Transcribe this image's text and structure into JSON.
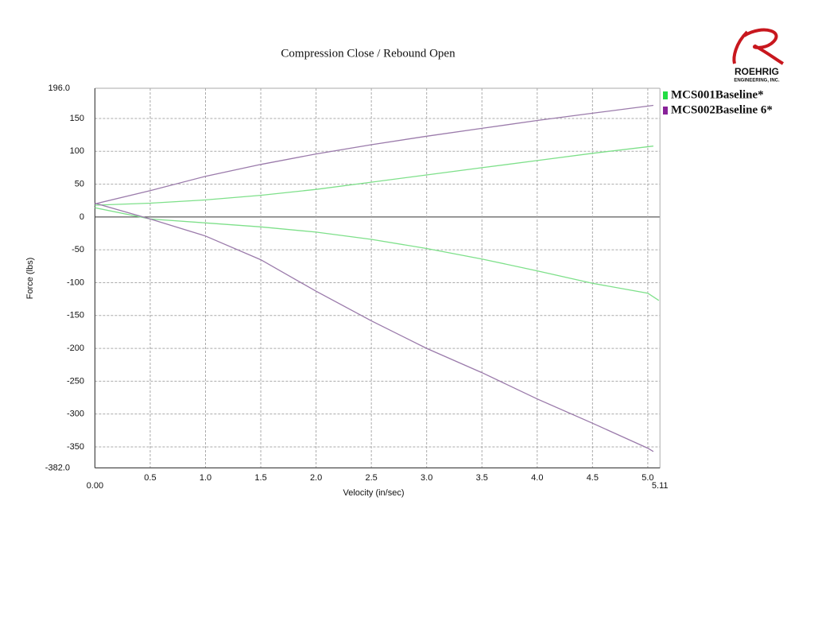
{
  "chart_data": {
    "type": "line",
    "title": "Compression Close / Rebound Open",
    "xlabel": "Velocity (in/sec)",
    "ylabel": "Force (lbs)",
    "xlim": [
      0,
      5.11
    ],
    "ylim": [
      -382,
      196
    ],
    "xticks": [
      {
        "value": 0,
        "label": "0.00"
      },
      0.5,
      {
        "value": 1,
        "label": "1.0"
      },
      1.5,
      {
        "value": 2,
        "label": "2.0"
      },
      2.5,
      {
        "value": 3,
        "label": "3.0"
      },
      3.5,
      {
        "value": 4,
        "label": "4.0"
      },
      4.5,
      {
        "value": 5,
        "label": "5.0"
      },
      5.11
    ],
    "yticks": [
      {
        "value": 196,
        "label": "196.0"
      },
      150,
      100,
      50,
      0,
      -50,
      -100,
      -150,
      -200,
      -250,
      -300,
      -350,
      {
        "value": -382,
        "label": "-382.0"
      }
    ],
    "grid": true,
    "series": [
      {
        "name": "MCS001Baseline*",
        "color": "#7ee08a",
        "x": [
          0,
          0.5,
          1,
          1.5,
          2,
          2.5,
          3,
          3.5,
          4,
          4.5,
          5.05,
          null,
          0,
          0.5,
          1,
          1.5,
          2,
          2.5,
          3,
          3.5,
          4,
          4.5,
          5.0,
          5.1
        ],
        "values": [
          18,
          21,
          26,
          33,
          42,
          53,
          64,
          75,
          86,
          97,
          108,
          null,
          14,
          -3,
          -9,
          -15,
          -23,
          -34,
          -48,
          -64,
          -82,
          -101,
          -116,
          -127
        ]
      },
      {
        "name": "MCS002Baseline 6*",
        "color": "#9b7bab",
        "x": [
          0,
          0.5,
          1,
          1.5,
          2,
          2.5,
          3,
          3.5,
          4,
          4.5,
          5.05,
          null,
          0,
          0.5,
          1,
          1.5,
          2,
          2.5,
          3,
          3.5,
          4,
          4.5,
          5.0,
          5.05
        ],
        "values": [
          20,
          40,
          62,
          80,
          96,
          110,
          123,
          135,
          147,
          158,
          170,
          null,
          21,
          -3,
          -29,
          -65,
          -113,
          -158,
          -200,
          -237,
          -277,
          -314,
          -352,
          -357
        ]
      }
    ],
    "legend_colors": [
      "#22dd44",
      "#882299"
    ]
  },
  "logo": {
    "name": "ROEHRIG",
    "sub": "ENGINEERING, INC."
  }
}
